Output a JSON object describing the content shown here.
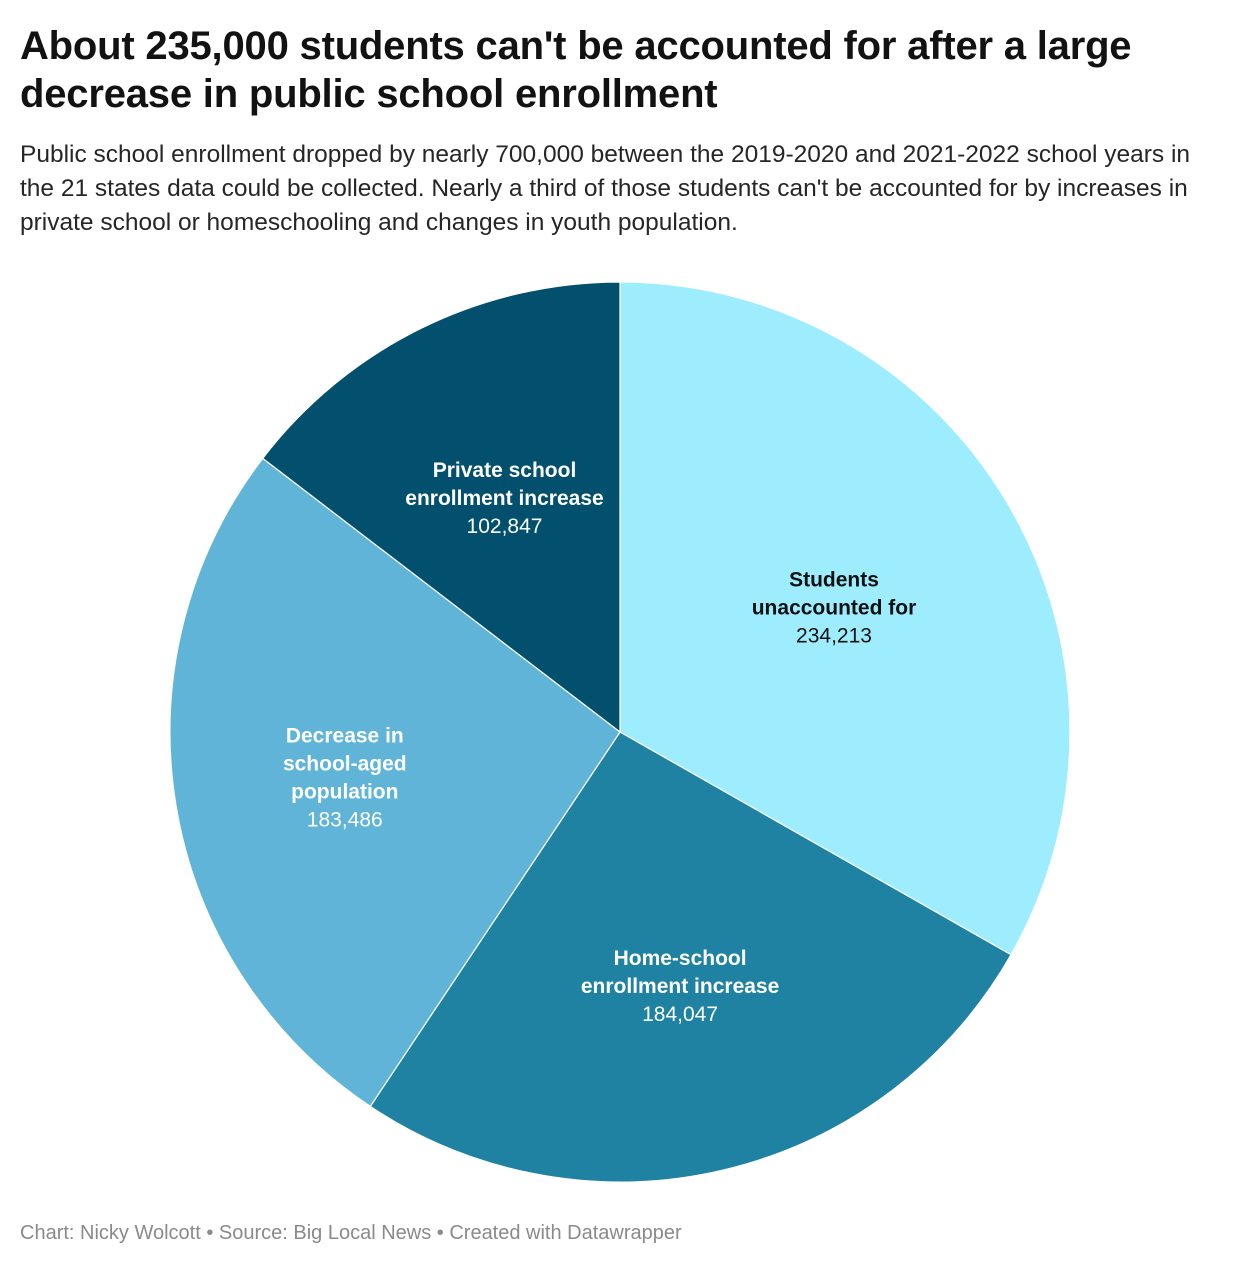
{
  "header": {
    "title": "About 235,000 students can't be accounted for after a large decrease in public school enrollment",
    "subtitle": "Public school enrollment dropped by nearly 700,000 between the 2019-2020 and 2021-2022 school years in the 21 states data could be collected. Nearly a third of those students can't be accounted for by increases in private school or homeschooling and changes in youth population."
  },
  "chart_data": {
    "type": "pie",
    "slices": [
      {
        "label": [
          "Students",
          "unaccounted for"
        ],
        "value": 234213,
        "value_text": "234,213",
        "color": "#9dedfe",
        "text_color": "#121212"
      },
      {
        "label": [
          "Home-school",
          "enrollment increase"
        ],
        "value": 184047,
        "value_text": "184,047",
        "color": "#1f82a2",
        "text_color": "#ffffff"
      },
      {
        "label": [
          "Decrease in",
          "school-aged",
          "population"
        ],
        "value": 183486,
        "value_text": "183,486",
        "color": "#5fb4d7",
        "text_color": "#ffffff"
      },
      {
        "label": [
          "Private school",
          "enrollment increase"
        ],
        "value": 102847,
        "value_text": "102,847",
        "color": "#02506e",
        "text_color": "#ffffff"
      }
    ],
    "start": "top",
    "direction": "clockwise"
  },
  "footer": {
    "credit": "Chart: Nicky Wolcott • Source: Big Local News • Created with Datawrapper"
  }
}
